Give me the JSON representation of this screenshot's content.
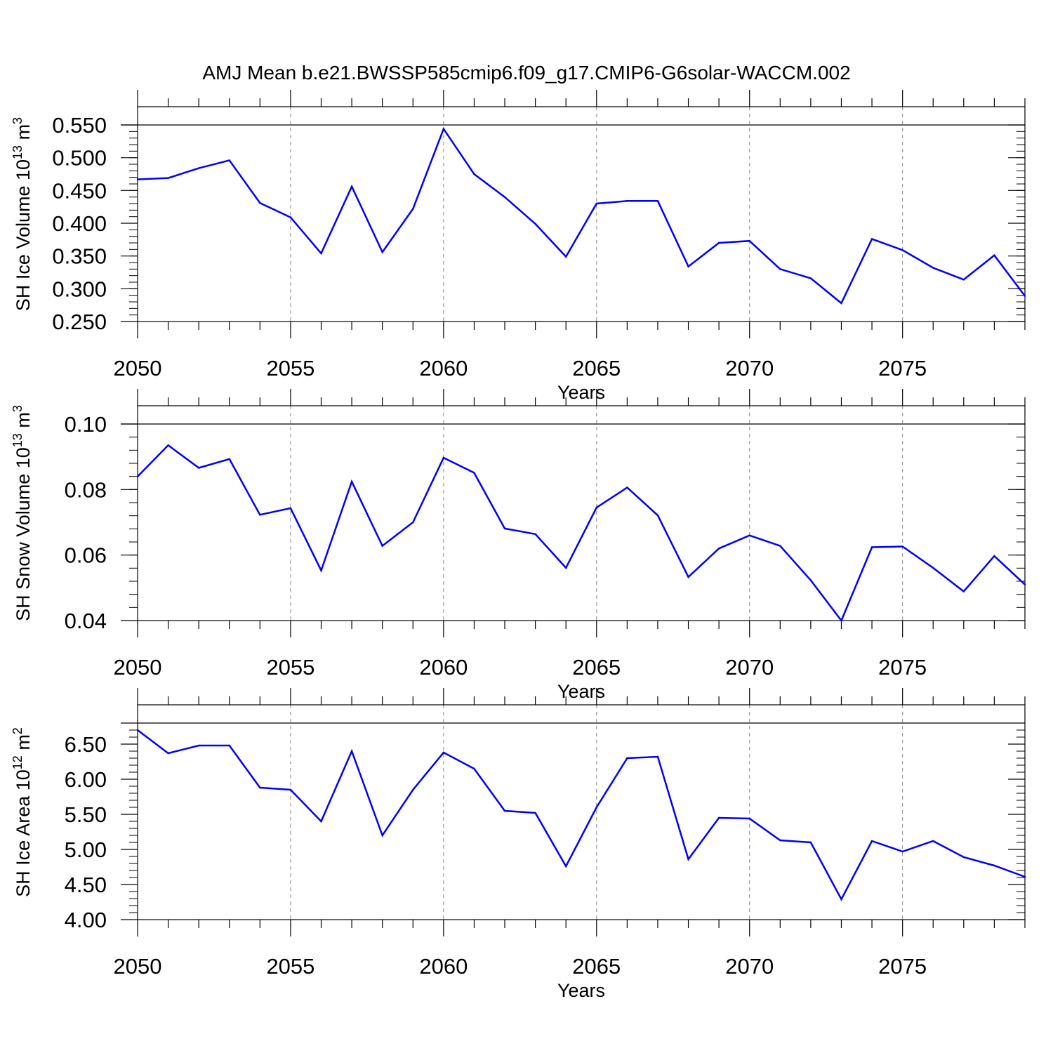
{
  "title": "AMJ Mean b.e21.BWSSP585cmip6.f09_g17.CMIP6-G6solar-WACCM.002",
  "colors": {
    "series": "#0000ff",
    "frame": "#000000",
    "grid": "#888888"
  },
  "chart_data": [
    {
      "type": "line",
      "xlabel": "Years",
      "ylabel_main": "SH Ice Volume 10",
      "ylabel_exp": "13",
      "ylabel_unit": " m",
      "ylabel_unit_exp": "3",
      "xlim": [
        2050,
        2079
      ],
      "ylim": [
        0.25,
        0.55
      ],
      "yticks": [
        0.25,
        0.3,
        0.35,
        0.4,
        0.45,
        0.5,
        0.55
      ],
      "ytick_labels": [
        "0.250",
        "0.300",
        "0.350",
        "0.400",
        "0.450",
        "0.500",
        "0.550"
      ],
      "xticks": [
        2050,
        2055,
        2060,
        2065,
        2070,
        2075
      ],
      "xtick_labels": [
        "2050",
        "2055",
        "2060",
        "2065",
        "2070",
        "2075"
      ],
      "grid": "dashed vertical at major x ticks",
      "x": [
        2050,
        2051,
        2052,
        2053,
        2054,
        2055,
        2056,
        2057,
        2058,
        2059,
        2060,
        2061,
        2062,
        2063,
        2064,
        2065,
        2066,
        2067,
        2068,
        2069,
        2070,
        2071,
        2072,
        2073,
        2074,
        2075,
        2076,
        2077,
        2078,
        2079
      ],
      "values": [
        0.467,
        0.469,
        0.484,
        0.496,
        0.431,
        0.409,
        0.354,
        0.456,
        0.356,
        0.422,
        0.544,
        0.475,
        0.44,
        0.399,
        0.349,
        0.43,
        0.434,
        0.434,
        0.334,
        0.37,
        0.373,
        0.33,
        0.316,
        0.278,
        0.376,
        0.359,
        0.332,
        0.314,
        0.351,
        0.289
      ]
    },
    {
      "type": "line",
      "xlabel": "Years",
      "ylabel_main": "SH Snow Volume 10",
      "ylabel_exp": "13",
      "ylabel_unit": " m",
      "ylabel_unit_exp": "3",
      "xlim": [
        2050,
        2079
      ],
      "ylim": [
        0.04,
        0.1
      ],
      "yticks": [
        0.04,
        0.06,
        0.08,
        0.1
      ],
      "ytick_labels": [
        "0.04",
        "0.06",
        "0.08",
        "0.10"
      ],
      "xticks": [
        2050,
        2055,
        2060,
        2065,
        2070,
        2075
      ],
      "xtick_labels": [
        "2050",
        "2055",
        "2060",
        "2065",
        "2070",
        "2075"
      ],
      "grid": "dashed vertical at major x ticks",
      "x": [
        2050,
        2051,
        2052,
        2053,
        2054,
        2055,
        2056,
        2057,
        2058,
        2059,
        2060,
        2061,
        2062,
        2063,
        2064,
        2065,
        2066,
        2067,
        2068,
        2069,
        2070,
        2071,
        2072,
        2073,
        2074,
        2075,
        2076,
        2077,
        2078,
        2079
      ],
      "values": [
        0.084,
        0.0935,
        0.0866,
        0.0893,
        0.0723,
        0.0743,
        0.0553,
        0.0824,
        0.0628,
        0.07,
        0.0897,
        0.0851,
        0.0681,
        0.0664,
        0.0561,
        0.0745,
        0.0806,
        0.0721,
        0.0533,
        0.062,
        0.066,
        0.0628,
        0.0523,
        0.04,
        0.0624,
        0.0626,
        0.0561,
        0.0489,
        0.0597,
        0.051
      ]
    },
    {
      "type": "line",
      "xlabel": "Years",
      "ylabel_main": "SH Ice Area 10",
      "ylabel_exp": "12",
      "ylabel_unit": " m",
      "ylabel_unit_exp": "2",
      "xlim": [
        2050,
        2079
      ],
      "ylim": [
        4.0,
        6.8
      ],
      "yticks": [
        4.0,
        4.5,
        5.0,
        5.5,
        6.0,
        6.5
      ],
      "ytick_labels": [
        "4.00",
        "4.50",
        "5.00",
        "5.50",
        "6.00",
        "6.50"
      ],
      "xticks": [
        2050,
        2055,
        2060,
        2065,
        2070,
        2075
      ],
      "xtick_labels": [
        "2050",
        "2055",
        "2060",
        "2065",
        "2070",
        "2075"
      ],
      "grid": "dashed vertical at major x ticks",
      "x": [
        2050,
        2051,
        2052,
        2053,
        2054,
        2055,
        2056,
        2057,
        2058,
        2059,
        2060,
        2061,
        2062,
        2063,
        2064,
        2065,
        2066,
        2067,
        2068,
        2069,
        2070,
        2071,
        2072,
        2073,
        2074,
        2075,
        2076,
        2077,
        2078,
        2079
      ],
      "values": [
        6.7,
        6.37,
        6.48,
        6.48,
        5.88,
        5.85,
        5.4,
        6.4,
        5.2,
        5.85,
        6.38,
        6.15,
        5.55,
        5.52,
        4.76,
        5.6,
        6.3,
        6.32,
        4.86,
        5.45,
        5.44,
        5.13,
        5.1,
        4.29,
        5.12,
        4.97,
        5.12,
        4.89,
        4.77,
        4.61
      ]
    }
  ]
}
